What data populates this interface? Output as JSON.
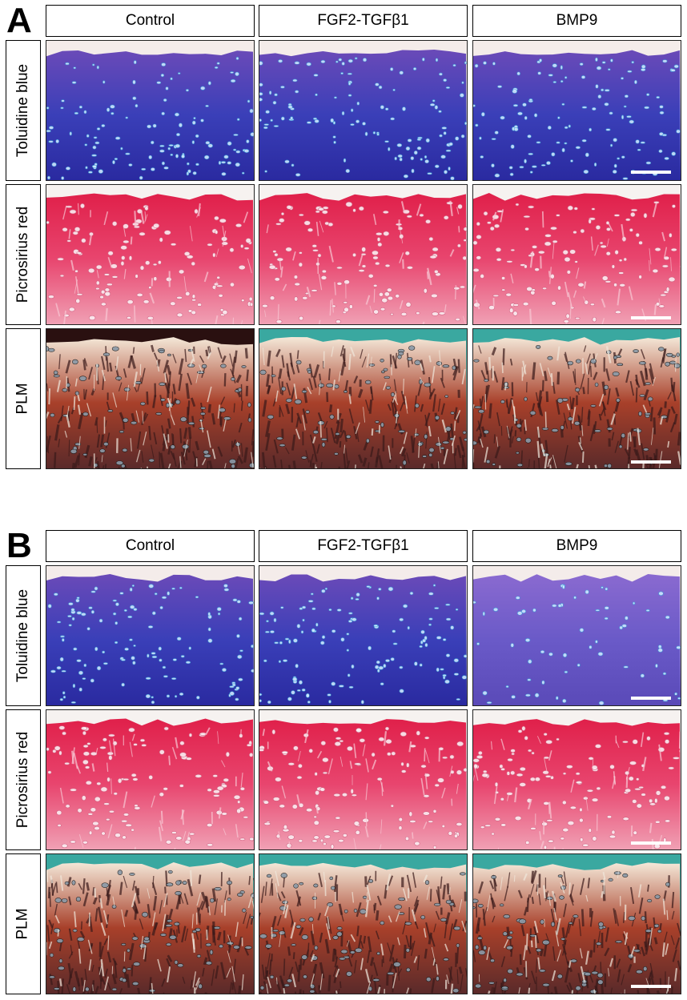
{
  "panels": [
    {
      "letter": "A",
      "columns": [
        "Control",
        "FGF2-TGFβ1",
        "BMP9"
      ],
      "rows": [
        "Toluidine blue",
        "Picrosirius red",
        "PLM"
      ]
    },
    {
      "letter": "B",
      "columns": [
        "Control",
        "FGF2-TGFβ1",
        "BMP9"
      ],
      "rows": [
        "Toluidine blue",
        "Picrosirius red",
        "PLM"
      ]
    }
  ],
  "colors": {
    "toluidine_blue": "#3a3fb8",
    "picrosirius_red": "#e8456e",
    "plm_dark": "#3a1a1a",
    "plm_light": "#f0e8dc",
    "plm_background": "#3aa8a0"
  }
}
